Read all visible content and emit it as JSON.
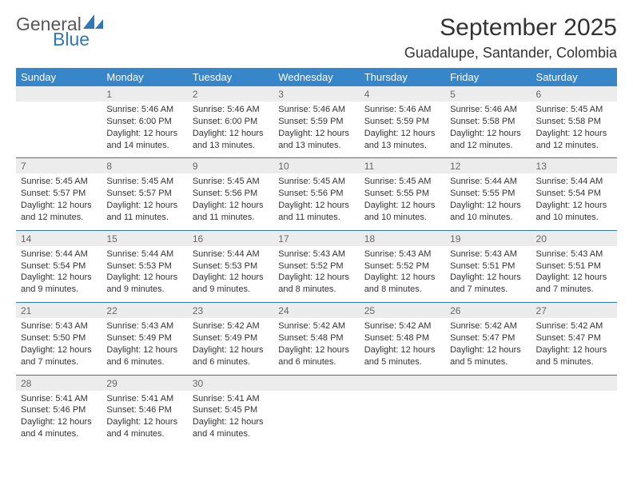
{
  "logo": {
    "text_general": "General",
    "text_blue": "Blue",
    "shape_color": "#2f78b8"
  },
  "title": "September 2025",
  "location": "Guadalupe, Santander, Colombia",
  "colors": {
    "header_bg": "#3686c9",
    "header_text": "#ffffff",
    "date_bg": "#ececec",
    "date_text": "#666666",
    "divider": "#2f78b8",
    "body_text": "#333333"
  },
  "fonts": {
    "title_size_pt": 22,
    "location_size_pt": 14,
    "header_size_pt": 10,
    "date_size_pt": 9,
    "info_size_pt": 8
  },
  "day_headers": [
    "Sunday",
    "Monday",
    "Tuesday",
    "Wednesday",
    "Thursday",
    "Friday",
    "Saturday"
  ],
  "weeks": [
    {
      "dates": [
        "",
        "1",
        "2",
        "3",
        "4",
        "5",
        "6"
      ],
      "cells": [
        null,
        {
          "sunrise": "Sunrise: 5:46 AM",
          "sunset": "Sunset: 6:00 PM",
          "daylight": "Daylight: 12 hours and 14 minutes."
        },
        {
          "sunrise": "Sunrise: 5:46 AM",
          "sunset": "Sunset: 6:00 PM",
          "daylight": "Daylight: 12 hours and 13 minutes."
        },
        {
          "sunrise": "Sunrise: 5:46 AM",
          "sunset": "Sunset: 5:59 PM",
          "daylight": "Daylight: 12 hours and 13 minutes."
        },
        {
          "sunrise": "Sunrise: 5:46 AM",
          "sunset": "Sunset: 5:59 PM",
          "daylight": "Daylight: 12 hours and 13 minutes."
        },
        {
          "sunrise": "Sunrise: 5:46 AM",
          "sunset": "Sunset: 5:58 PM",
          "daylight": "Daylight: 12 hours and 12 minutes."
        },
        {
          "sunrise": "Sunrise: 5:45 AM",
          "sunset": "Sunset: 5:58 PM",
          "daylight": "Daylight: 12 hours and 12 minutes."
        }
      ]
    },
    {
      "dates": [
        "7",
        "8",
        "9",
        "10",
        "11",
        "12",
        "13"
      ],
      "cells": [
        {
          "sunrise": "Sunrise: 5:45 AM",
          "sunset": "Sunset: 5:57 PM",
          "daylight": "Daylight: 12 hours and 12 minutes."
        },
        {
          "sunrise": "Sunrise: 5:45 AM",
          "sunset": "Sunset: 5:57 PM",
          "daylight": "Daylight: 12 hours and 11 minutes."
        },
        {
          "sunrise": "Sunrise: 5:45 AM",
          "sunset": "Sunset: 5:56 PM",
          "daylight": "Daylight: 12 hours and 11 minutes."
        },
        {
          "sunrise": "Sunrise: 5:45 AM",
          "sunset": "Sunset: 5:56 PM",
          "daylight": "Daylight: 12 hours and 11 minutes."
        },
        {
          "sunrise": "Sunrise: 5:45 AM",
          "sunset": "Sunset: 5:55 PM",
          "daylight": "Daylight: 12 hours and 10 minutes."
        },
        {
          "sunrise": "Sunrise: 5:44 AM",
          "sunset": "Sunset: 5:55 PM",
          "daylight": "Daylight: 12 hours and 10 minutes."
        },
        {
          "sunrise": "Sunrise: 5:44 AM",
          "sunset": "Sunset: 5:54 PM",
          "daylight": "Daylight: 12 hours and 10 minutes."
        }
      ]
    },
    {
      "dates": [
        "14",
        "15",
        "16",
        "17",
        "18",
        "19",
        "20"
      ],
      "cells": [
        {
          "sunrise": "Sunrise: 5:44 AM",
          "sunset": "Sunset: 5:54 PM",
          "daylight": "Daylight: 12 hours and 9 minutes."
        },
        {
          "sunrise": "Sunrise: 5:44 AM",
          "sunset": "Sunset: 5:53 PM",
          "daylight": "Daylight: 12 hours and 9 minutes."
        },
        {
          "sunrise": "Sunrise: 5:44 AM",
          "sunset": "Sunset: 5:53 PM",
          "daylight": "Daylight: 12 hours and 9 minutes."
        },
        {
          "sunrise": "Sunrise: 5:43 AM",
          "sunset": "Sunset: 5:52 PM",
          "daylight": "Daylight: 12 hours and 8 minutes."
        },
        {
          "sunrise": "Sunrise: 5:43 AM",
          "sunset": "Sunset: 5:52 PM",
          "daylight": "Daylight: 12 hours and 8 minutes."
        },
        {
          "sunrise": "Sunrise: 5:43 AM",
          "sunset": "Sunset: 5:51 PM",
          "daylight": "Daylight: 12 hours and 7 minutes."
        },
        {
          "sunrise": "Sunrise: 5:43 AM",
          "sunset": "Sunset: 5:51 PM",
          "daylight": "Daylight: 12 hours and 7 minutes."
        }
      ]
    },
    {
      "dates": [
        "21",
        "22",
        "23",
        "24",
        "25",
        "26",
        "27"
      ],
      "cells": [
        {
          "sunrise": "Sunrise: 5:43 AM",
          "sunset": "Sunset: 5:50 PM",
          "daylight": "Daylight: 12 hours and 7 minutes."
        },
        {
          "sunrise": "Sunrise: 5:43 AM",
          "sunset": "Sunset: 5:49 PM",
          "daylight": "Daylight: 12 hours and 6 minutes."
        },
        {
          "sunrise": "Sunrise: 5:42 AM",
          "sunset": "Sunset: 5:49 PM",
          "daylight": "Daylight: 12 hours and 6 minutes."
        },
        {
          "sunrise": "Sunrise: 5:42 AM",
          "sunset": "Sunset: 5:48 PM",
          "daylight": "Daylight: 12 hours and 6 minutes."
        },
        {
          "sunrise": "Sunrise: 5:42 AM",
          "sunset": "Sunset: 5:48 PM",
          "daylight": "Daylight: 12 hours and 5 minutes."
        },
        {
          "sunrise": "Sunrise: 5:42 AM",
          "sunset": "Sunset: 5:47 PM",
          "daylight": "Daylight: 12 hours and 5 minutes."
        },
        {
          "sunrise": "Sunrise: 5:42 AM",
          "sunset": "Sunset: 5:47 PM",
          "daylight": "Daylight: 12 hours and 5 minutes."
        }
      ]
    },
    {
      "dates": [
        "28",
        "29",
        "30",
        "",
        "",
        "",
        ""
      ],
      "cells": [
        {
          "sunrise": "Sunrise: 5:41 AM",
          "sunset": "Sunset: 5:46 PM",
          "daylight": "Daylight: 12 hours and 4 minutes."
        },
        {
          "sunrise": "Sunrise: 5:41 AM",
          "sunset": "Sunset: 5:46 PM",
          "daylight": "Daylight: 12 hours and 4 minutes."
        },
        {
          "sunrise": "Sunrise: 5:41 AM",
          "sunset": "Sunset: 5:45 PM",
          "daylight": "Daylight: 12 hours and 4 minutes."
        },
        null,
        null,
        null,
        null
      ]
    }
  ]
}
